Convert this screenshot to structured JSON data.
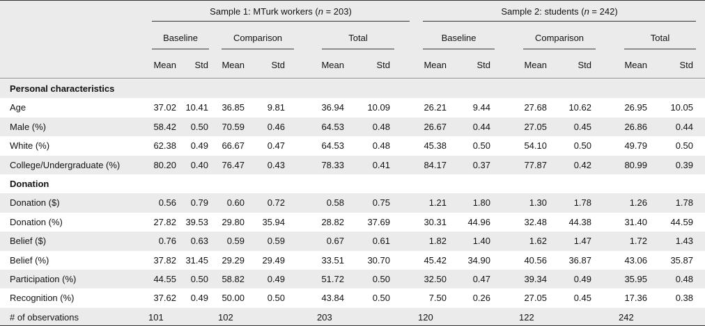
{
  "table": {
    "groups": [
      {
        "title": [
          "Sample 1: MTurk workers (",
          "n",
          " = 203)"
        ]
      },
      {
        "title": [
          "Sample 2: students (",
          "n",
          " = 242)"
        ]
      }
    ],
    "subgroups": [
      "Baseline",
      "Comparison",
      "Total",
      "Baseline",
      "Comparison",
      "Total"
    ],
    "stats": [
      "Mean",
      "Std",
      "Mean",
      "Std",
      "Mean",
      "Std",
      "Mean",
      "Std",
      "Mean",
      "Std",
      "Mean",
      "Std"
    ],
    "rows": [
      {
        "label": "Personal characteristics",
        "section": true
      },
      {
        "label": "Age",
        "values": [
          "37.02",
          "10.41",
          "36.85",
          "9.81",
          "36.94",
          "10.09",
          "26.21",
          "9.44",
          "27.68",
          "10.62",
          "26.95",
          "10.05"
        ]
      },
      {
        "label": "Male (%)",
        "values": [
          "58.42",
          "0.50",
          "70.59",
          "0.46",
          "64.53",
          "0.48",
          "26.67",
          "0.44",
          "27.05",
          "0.45",
          "26.86",
          "0.44"
        ]
      },
      {
        "label": "White (%)",
        "values": [
          "62.38",
          "0.49",
          "66.67",
          "0.47",
          "64.53",
          "0.48",
          "45.38",
          "0.50",
          "54.10",
          "0.50",
          "49.79",
          "0.50"
        ]
      },
      {
        "label": "College/Undergraduate (%)",
        "values": [
          "80.20",
          "0.40",
          "76.47",
          "0.43",
          "78.33",
          "0.41",
          "84.17",
          "0.37",
          "77.87",
          "0.42",
          "80.99",
          "0.39"
        ]
      },
      {
        "label": "Donation",
        "section": true
      },
      {
        "label": "Donation ($)",
        "values": [
          "0.56",
          "0.79",
          "0.60",
          "0.72",
          "0.58",
          "0.75",
          "1.21",
          "1.80",
          "1.30",
          "1.78",
          "1.26",
          "1.78"
        ]
      },
      {
        "label": "Donation (%)",
        "values": [
          "27.82",
          "39.53",
          "29.80",
          "35.94",
          "28.82",
          "37.69",
          "30.31",
          "44.96",
          "32.48",
          "44.38",
          "31.40",
          "44.59"
        ]
      },
      {
        "label": "Belief ($)",
        "values": [
          "0.76",
          "0.63",
          "0.59",
          "0.59",
          "0.67",
          "0.61",
          "1.82",
          "1.40",
          "1.62",
          "1.47",
          "1.72",
          "1.43"
        ]
      },
      {
        "label": "Belief (%)",
        "values": [
          "37.82",
          "31.45",
          "29.29",
          "29.49",
          "33.51",
          "30.70",
          "45.42",
          "34.90",
          "40.56",
          "36.87",
          "43.06",
          "35.87"
        ]
      },
      {
        "label": "Participation (%)",
        "values": [
          "44.55",
          "0.50",
          "58.82",
          "0.49",
          "51.72",
          "0.50",
          "32.50",
          "0.47",
          "39.34",
          "0.49",
          "35.95",
          "0.48"
        ]
      },
      {
        "label": "Recognition (%)",
        "values": [
          "37.62",
          "0.49",
          "50.00",
          "0.50",
          "43.84",
          "0.50",
          "7.50",
          "0.26",
          "27.05",
          "0.45",
          "17.36",
          "0.38"
        ]
      },
      {
        "label": "# of observations",
        "counts": [
          "101",
          "102",
          "203",
          "120",
          "122",
          "242"
        ]
      }
    ]
  }
}
